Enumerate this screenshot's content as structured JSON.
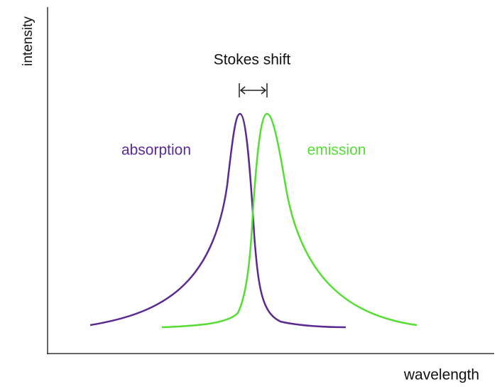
{
  "axes": {
    "y_label": "intensity",
    "x_label": "wavelength"
  },
  "annotation": "Stokes shift",
  "curves": [
    {
      "label": "absorption"
    },
    {
      "label": "emission"
    }
  ]
}
